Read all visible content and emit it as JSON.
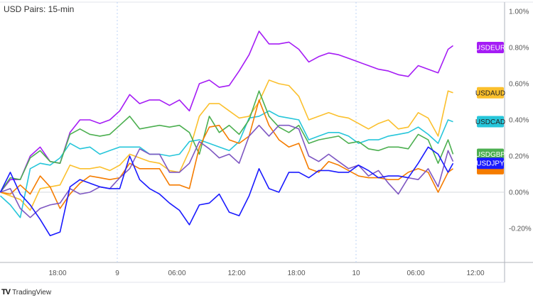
{
  "header": {
    "title": "USD Pairs: 15-min"
  },
  "footer": {
    "brand": "TradingView"
  },
  "chart_data": {
    "type": "line",
    "title": "USD Pairs: 15-min",
    "yunit": "%",
    "ylim": [
      -0.3,
      1.05
    ],
    "yticks": [
      "1.00%",
      "0.80%",
      "0.60%",
      "0.40%",
      "0.20%",
      "0.00%",
      "-0.20%"
    ],
    "ytick_values": [
      1.0,
      0.8,
      0.6,
      0.4,
      0.2,
      0.0,
      -0.2
    ],
    "xticks": [
      {
        "label": "18:00",
        "t": "8 18:00"
      },
      {
        "label": "9",
        "t": "9 00:00"
      },
      {
        "label": "06:00",
        "t": "9 06:00"
      },
      {
        "label": "12:00",
        "t": "9 12:00"
      },
      {
        "label": "18:00",
        "t": "9 18:00"
      },
      {
        "label": "10",
        "t": "10 00:00"
      },
      {
        "label": "06:00",
        "t": "10 06:00"
      },
      {
        "label": "12:00",
        "t": "10 12:00"
      }
    ],
    "day_separators": [
      "9 00:00",
      "10 00:00"
    ],
    "grid": false,
    "zero_line": true,
    "x": [
      "8 12:15",
      "8 13:15",
      "8 14:15",
      "8 15:15",
      "8 16:15",
      "8 17:15",
      "8 18:15",
      "8 19:15",
      "8 20:15",
      "8 21:15",
      "8 22:15",
      "8 23:15",
      "9 00:15",
      "9 01:15",
      "9 02:15",
      "9 03:15",
      "9 04:15",
      "9 05:15",
      "9 06:15",
      "9 07:15",
      "9 08:15",
      "9 09:15",
      "9 10:15",
      "9 11:15",
      "9 12:15",
      "9 13:15",
      "9 14:15",
      "9 15:15",
      "9 16:15",
      "9 17:15",
      "9 18:15",
      "9 19:15",
      "9 20:15",
      "9 21:15",
      "9 22:15",
      "9 23:15",
      "10 00:15",
      "10 01:15",
      "10 02:15",
      "10 03:15",
      "10 04:15",
      "10 05:15",
      "10 06:15",
      "10 07:15",
      "10 08:15",
      "10 09:15",
      "10 09:45"
    ],
    "series": [
      {
        "name": "USDEUR",
        "color": "#a51cf5",
        "label_text_color": "#ffffff",
        "last": 0.8,
        "values": [
          0,
          0.07,
          0.07,
          0.2,
          0.25,
          0.17,
          0.16,
          0.33,
          0.4,
          0.4,
          0.38,
          0.4,
          0.45,
          0.54,
          0.49,
          0.51,
          0.51,
          0.48,
          0.51,
          0.45,
          0.6,
          0.62,
          0.58,
          0.59,
          0.67,
          0.76,
          0.89,
          0.82,
          0.82,
          0.83,
          0.79,
          0.72,
          0.75,
          0.77,
          0.76,
          0.74,
          0.72,
          0.7,
          0.68,
          0.67,
          0.65,
          0.64,
          0.7,
          0.68,
          0.66,
          0.79,
          0.81
        ]
      },
      {
        "name": "USDAUD",
        "color": "#fbc02d",
        "label_text_color": "#222222",
        "last": 0.55,
        "values": [
          0,
          -0.02,
          -0.04,
          -0.1,
          0.02,
          0.03,
          0.04,
          0.15,
          0.13,
          0.13,
          0.14,
          0.12,
          0.15,
          0.21,
          0.19,
          0.17,
          0.16,
          0.12,
          0.11,
          0.23,
          0.42,
          0.49,
          0.49,
          0.45,
          0.41,
          0.42,
          0.5,
          0.62,
          0.6,
          0.59,
          0.53,
          0.4,
          0.42,
          0.44,
          0.42,
          0.41,
          0.38,
          0.35,
          0.38,
          0.4,
          0.35,
          0.36,
          0.44,
          0.41,
          0.31,
          0.56,
          0.55
        ]
      },
      {
        "name": "USDCAD",
        "color": "#26c6da",
        "label_text_color": "#222222",
        "last": 0.39,
        "values": [
          -0.02,
          -0.07,
          -0.14,
          0.13,
          0.16,
          0.15,
          0.19,
          0.27,
          0.24,
          0.25,
          0.21,
          0.23,
          0.25,
          0.25,
          0.25,
          0.21,
          0.21,
          0.2,
          0.21,
          0.28,
          0.29,
          0.27,
          0.25,
          0.23,
          0.28,
          0.41,
          0.42,
          0.45,
          0.42,
          0.41,
          0.4,
          0.29,
          0.31,
          0.33,
          0.33,
          0.31,
          0.27,
          0.29,
          0.29,
          0.31,
          0.32,
          0.33,
          0.36,
          0.32,
          0.27,
          0.4,
          0.39
        ]
      },
      {
        "name": "USDGBP",
        "color": "#4caf50",
        "label_text_color": "#ffffff",
        "last": 0.21,
        "values": [
          0,
          0.08,
          0.07,
          0.19,
          0.23,
          0.17,
          0.16,
          0.32,
          0.35,
          0.32,
          0.31,
          0.32,
          0.37,
          0.42,
          0.35,
          0.36,
          0.37,
          0.36,
          0.37,
          0.33,
          0.21,
          0.42,
          0.33,
          0.37,
          0.32,
          0.4,
          0.56,
          0.42,
          0.36,
          0.33,
          0.37,
          0.27,
          0.29,
          0.3,
          0.31,
          0.27,
          0.28,
          0.24,
          0.23,
          0.25,
          0.25,
          0.24,
          0.32,
          0.29,
          0.16,
          0.29,
          0.21
        ]
      },
      {
        "name": "",
        "color": "#f57c00",
        "label_text_color": "#ffffff",
        "last": 0.13,
        "values": [
          0,
          -0.01,
          0.04,
          -0.01,
          0.09,
          0.03,
          -0.09,
          -0.01,
          0.05,
          0.09,
          0.08,
          0.07,
          0.08,
          0.16,
          0.13,
          0.13,
          0.13,
          0.04,
          0.04,
          0.02,
          0.25,
          0.36,
          0.37,
          0.29,
          0.27,
          0.31,
          0.51,
          0.37,
          0.29,
          0.25,
          0.27,
          0.13,
          0.11,
          0.17,
          0.15,
          0.12,
          0.09,
          0.08,
          0.08,
          0.07,
          0.07,
          0.11,
          0.13,
          0.11,
          0.0,
          0.11,
          0.13
        ]
      },
      {
        "name": "",
        "color": "#7e57c2",
        "label_text_color": "#ffffff",
        "last": 0.17,
        "values": [
          0,
          0.02,
          -0.09,
          -0.14,
          -0.09,
          -0.07,
          -0.06,
          0.02,
          -0.01,
          0,
          0.03,
          0.02,
          0.08,
          0.13,
          0.24,
          0.21,
          0.21,
          0.11,
          0.11,
          0.16,
          0.28,
          0.24,
          0.19,
          0.21,
          0.16,
          0.31,
          0.37,
          0.31,
          0.37,
          0.37,
          0.35,
          0.2,
          0.17,
          0.21,
          0.17,
          0.13,
          0.15,
          0.09,
          0.12,
          0.05,
          -0.01,
          0.08,
          0.07,
          0.13,
          0.03,
          0.23,
          0.17
        ]
      },
      {
        "name": "USDJPY",
        "color": "#1a1aff",
        "label_text_color": "#ffffff",
        "last": 0.16,
        "values": [
          0,
          0.11,
          -0.01,
          -0.07,
          -0.15,
          -0.24,
          -0.22,
          0.03,
          0.07,
          0.05,
          0.03,
          0.02,
          0.02,
          0.2,
          0.07,
          0.02,
          -0.01,
          -0.06,
          -0.1,
          -0.18,
          -0.07,
          -0.06,
          -0.01,
          -0.11,
          -0.13,
          -0.02,
          0.13,
          0.02,
          0.0,
          0.11,
          0.11,
          0.08,
          0.12,
          0.12,
          0.11,
          0.11,
          0.15,
          0.12,
          0.08,
          0.09,
          0.09,
          0.08,
          0.16,
          0.25,
          0.21,
          0.11,
          0.16
        ]
      }
    ]
  }
}
